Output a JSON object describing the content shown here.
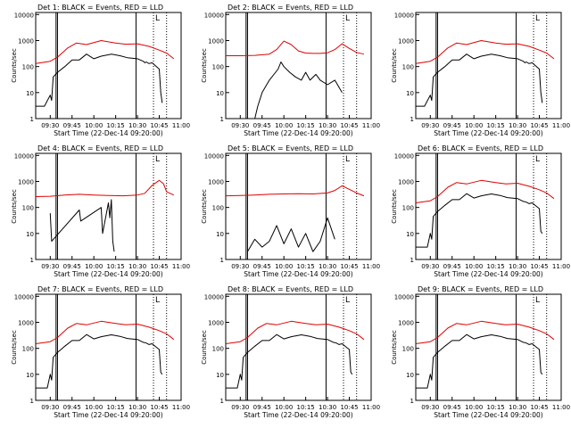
{
  "figure": {
    "xlabel": "Start Time (22-Dec-14 09:20:00)",
    "ylabel": "Counts/sec",
    "colors": {
      "events": "#000000",
      "lld": "#e00000",
      "axis": "#000000",
      "background": "#ffffff"
    }
  },
  "chart_data": [
    {
      "type": "line",
      "title": "Det 1: BLACK = Events, RED = LLD",
      "x_ticks": [
        "09:30",
        "09:45",
        "10:00",
        "10:15",
        "10:30",
        "10:45",
        "11:00"
      ],
      "y_ticks": [
        "1",
        "10",
        "100",
        "1000",
        "10000"
      ],
      "ylim": [
        1,
        12000
      ],
      "log_y": true,
      "xlim_minutes_from_start": [
        0,
        100
      ],
      "series": [
        {
          "name": "LLD",
          "color": "#e00000",
          "x": [
            0,
            10,
            15,
            22,
            28,
            35,
            45,
            55,
            62,
            70,
            78,
            85,
            90,
            95
          ],
          "y": [
            130,
            160,
            230,
            520,
            800,
            700,
            1000,
            800,
            720,
            750,
            600,
            430,
            330,
            200
          ]
        },
        {
          "name": "Events",
          "color": "#000000",
          "x": [
            0,
            6,
            10,
            11,
            12,
            15,
            20,
            25,
            30,
            35,
            40,
            45,
            52,
            58,
            63,
            70,
            74,
            75,
            76,
            78,
            80,
            85,
            86,
            87
          ],
          "y": [
            3,
            3,
            8,
            5,
            40,
            60,
            100,
            180,
            180,
            300,
            200,
            250,
            300,
            260,
            220,
            200,
            160,
            140,
            150,
            130,
            140,
            80,
            10,
            4
          ]
        }
      ],
      "annotations": {
        "solid_lines": [
          "09:34",
          "09:35",
          "10:29"
        ],
        "dotted_lines": [
          "10:41",
          "10:50"
        ],
        "markers": [
          "L"
        ]
      }
    },
    {
      "type": "line",
      "title": "Det 2: BLACK = Events, RED = LLD",
      "x_ticks": [
        "09:30",
        "09:45",
        "10:00",
        "10:15",
        "10:30",
        "10:45",
        "11:00"
      ],
      "y_ticks": [
        "1",
        "10",
        "100",
        "1000",
        "10000"
      ],
      "ylim": [
        1,
        12000
      ],
      "log_y": true,
      "xlim_minutes_from_start": [
        0,
        100
      ],
      "series": [
        {
          "name": "LLD",
          "color": "#e00000",
          "x": [
            0,
            10,
            20,
            30,
            35,
            40,
            45,
            50,
            55,
            60,
            65,
            70,
            75,
            80,
            85,
            90,
            95
          ],
          "y": [
            260,
            260,
            270,
            300,
            450,
            950,
            700,
            400,
            330,
            320,
            320,
            340,
            450,
            750,
            500,
            350,
            300
          ]
        },
        {
          "name": "Events",
          "color": "#000000",
          "x": [
            20,
            22,
            25,
            30,
            36,
            38,
            40,
            44,
            48,
            52,
            55,
            58,
            62,
            65,
            70,
            75,
            80
          ],
          "y": [
            1,
            3,
            10,
            30,
            80,
            150,
            100,
            60,
            40,
            30,
            60,
            30,
            50,
            30,
            20,
            30,
            10
          ]
        }
      ],
      "annotations": {
        "solid_lines": [
          "09:34",
          "09:35",
          "10:29"
        ],
        "dotted_lines": [
          "10:41",
          "10:50"
        ],
        "markers": [
          "L"
        ]
      }
    },
    {
      "type": "line",
      "title": "",
      "x_ticks": [
        "09:30",
        "09:45",
        "10:00",
        "10:15",
        "10:30",
        "10:45",
        "11:00"
      ],
      "y_ticks": [
        "1",
        "10",
        "100",
        "1000",
        "10000"
      ],
      "ylim": [
        1,
        12000
      ],
      "log_y": true,
      "xlim_minutes_from_start": [
        0,
        100
      ],
      "series": [
        {
          "name": "LLD",
          "color": "#e00000",
          "x": [
            0,
            10,
            15,
            22,
            28,
            35,
            45,
            55,
            62,
            70,
            78,
            85,
            90,
            95
          ],
          "y": [
            130,
            160,
            230,
            520,
            800,
            700,
            1000,
            800,
            720,
            750,
            600,
            430,
            330,
            200
          ]
        },
        {
          "name": "Events",
          "color": "#000000",
          "x": [
            0,
            6,
            10,
            11,
            12,
            15,
            20,
            25,
            30,
            35,
            40,
            45,
            52,
            58,
            63,
            70,
            74,
            75,
            76,
            78,
            80,
            85,
            86,
            87
          ],
          "y": [
            3,
            3,
            8,
            5,
            40,
            60,
            100,
            180,
            180,
            300,
            200,
            250,
            300,
            260,
            220,
            200,
            160,
            140,
            150,
            130,
            140,
            80,
            10,
            4
          ]
        }
      ],
      "annotations": {
        "solid_lines": [
          "09:34",
          "09:35",
          "10:29"
        ],
        "dotted_lines": [
          "10:41",
          "10:50"
        ],
        "markers": [
          "L"
        ]
      }
    },
    {
      "type": "line",
      "title": "Det 4: BLACK = Events, RED = LLD",
      "x_ticks": [
        "09:30",
        "09:45",
        "10:00",
        "10:15",
        "10:30",
        "10:45",
        "11:00"
      ],
      "y_ticks": [
        "1",
        "10",
        "100",
        "1000",
        "10000"
      ],
      "ylim": [
        1,
        12000
      ],
      "log_y": true,
      "xlim_minutes_from_start": [
        0,
        100
      ],
      "series": [
        {
          "name": "LLD",
          "color": "#e00000",
          "x": [
            0,
            10,
            20,
            30,
            40,
            50,
            60,
            70,
            75,
            80,
            85,
            88,
            90,
            95
          ],
          "y": [
            260,
            270,
            300,
            320,
            300,
            290,
            280,
            300,
            350,
            700,
            1100,
            800,
            400,
            300
          ]
        },
        {
          "name": "Events",
          "color": "#000000",
          "x": [
            10,
            11,
            30,
            31,
            45,
            46,
            50,
            51,
            52,
            53,
            54
          ],
          "y": [
            60,
            5,
            80,
            30,
            100,
            10,
            150,
            40,
            200,
            5,
            2
          ]
        }
      ],
      "annotations": {
        "solid_lines": [
          "09:34",
          "09:35",
          "10:29"
        ],
        "dotted_lines": [
          "10:41",
          "10:50"
        ],
        "markers": [
          "L"
        ]
      }
    },
    {
      "type": "line",
      "title": "Det 5: BLACK = Events, RED = LLD",
      "x_ticks": [
        "09:30",
        "09:45",
        "10:00",
        "10:15",
        "10:30",
        "10:45",
        "11:00"
      ],
      "y_ticks": [
        "1",
        "10",
        "100",
        "1000",
        "10000"
      ],
      "ylim": [
        1,
        12000
      ],
      "log_y": true,
      "xlim_minutes_from_start": [
        0,
        100
      ],
      "series": [
        {
          "name": "LLD",
          "color": "#e00000",
          "x": [
            0,
            10,
            20,
            30,
            40,
            50,
            60,
            70,
            75,
            80,
            85,
            90,
            95
          ],
          "y": [
            280,
            290,
            300,
            320,
            330,
            340,
            330,
            360,
            450,
            680,
            500,
            360,
            280
          ]
        },
        {
          "name": "Events",
          "color": "#000000",
          "x": [
            15,
            20,
            25,
            30,
            35,
            40,
            45,
            50,
            55,
            60,
            65,
            70,
            75
          ],
          "y": [
            2,
            6,
            3,
            5,
            20,
            4,
            15,
            3,
            10,
            2,
            5,
            40,
            6
          ]
        }
      ],
      "annotations": {
        "solid_lines": [
          "09:34",
          "09:35",
          "10:29"
        ],
        "dotted_lines": [
          "10:41",
          "10:50"
        ],
        "markers": [
          "L"
        ]
      }
    },
    {
      "type": "line",
      "title": "Det 6: BLACK = Events, RED = LLD",
      "x_ticks": [
        "09:30",
        "09:45",
        "10:00",
        "10:15",
        "10:30",
        "10:45",
        "11:00"
      ],
      "y_ticks": [
        "1",
        "10",
        "100",
        "1000",
        "10000"
      ],
      "ylim": [
        1,
        12000
      ],
      "log_y": true,
      "xlim_minutes_from_start": [
        0,
        100
      ],
      "series": [
        {
          "name": "LLD",
          "color": "#e00000",
          "x": [
            0,
            10,
            15,
            22,
            28,
            35,
            45,
            55,
            62,
            70,
            78,
            85,
            90,
            95
          ],
          "y": [
            150,
            180,
            260,
            600,
            900,
            800,
            1100,
            900,
            800,
            850,
            650,
            480,
            360,
            220
          ]
        },
        {
          "name": "Events",
          "color": "#000000",
          "x": [
            0,
            8,
            10,
            11,
            12,
            15,
            20,
            25,
            30,
            35,
            40,
            45,
            52,
            58,
            63,
            70,
            74,
            76,
            78,
            80,
            85,
            86,
            87
          ],
          "y": [
            3,
            3,
            10,
            6,
            45,
            70,
            120,
            200,
            200,
            340,
            230,
            280,
            330,
            290,
            240,
            220,
            170,
            160,
            140,
            150,
            90,
            12,
            10
          ]
        }
      ],
      "annotations": {
        "solid_lines": [
          "09:34",
          "09:35",
          "10:29"
        ],
        "dotted_lines": [
          "10:41",
          "10:50"
        ],
        "markers": [
          "L"
        ]
      }
    },
    {
      "type": "line",
      "title": "Det 7: BLACK = Events, RED = LLD",
      "x_ticks": [
        "09:30",
        "09:45",
        "10:00",
        "10:15",
        "10:30",
        "10:45",
        "11:00"
      ],
      "y_ticks": [
        "1",
        "10",
        "100",
        "1000",
        "10000"
      ],
      "ylim": [
        1,
        12000
      ],
      "log_y": true,
      "xlim_minutes_from_start": [
        0,
        100
      ],
      "series": [
        {
          "name": "LLD",
          "color": "#e00000",
          "x": [
            0,
            10,
            15,
            22,
            28,
            35,
            45,
            55,
            62,
            70,
            78,
            85,
            90,
            95
          ],
          "y": [
            150,
            180,
            260,
            600,
            900,
            800,
            1100,
            900,
            800,
            850,
            650,
            480,
            360,
            220
          ]
        },
        {
          "name": "Events",
          "color": "#000000",
          "x": [
            0,
            8,
            10,
            11,
            12,
            15,
            20,
            25,
            30,
            35,
            40,
            45,
            52,
            58,
            63,
            70,
            74,
            76,
            78,
            80,
            85,
            86,
            87
          ],
          "y": [
            3,
            3,
            10,
            6,
            45,
            70,
            120,
            200,
            200,
            340,
            230,
            280,
            330,
            290,
            240,
            220,
            170,
            160,
            140,
            150,
            90,
            12,
            10
          ]
        }
      ],
      "annotations": {
        "solid_lines": [
          "09:34",
          "09:35",
          "10:29"
        ],
        "dotted_lines": [
          "10:41",
          "10:50"
        ],
        "markers": [
          "L"
        ]
      }
    },
    {
      "type": "line",
      "title": "Det 8: BLACK = Events, RED = LLD",
      "x_ticks": [
        "09:30",
        "09:45",
        "10:00",
        "10:15",
        "10:30",
        "10:45",
        "11:00"
      ],
      "y_ticks": [
        "1",
        "10",
        "100",
        "1000",
        "10000"
      ],
      "ylim": [
        1,
        12000
      ],
      "log_y": true,
      "xlim_minutes_from_start": [
        0,
        100
      ],
      "series": [
        {
          "name": "LLD",
          "color": "#e00000",
          "x": [
            0,
            10,
            15,
            22,
            28,
            35,
            45,
            55,
            62,
            70,
            78,
            85,
            90,
            95
          ],
          "y": [
            150,
            180,
            260,
            600,
            900,
            800,
            1100,
            900,
            800,
            850,
            650,
            480,
            360,
            220
          ]
        },
        {
          "name": "Events",
          "color": "#000000",
          "x": [
            0,
            8,
            10,
            11,
            12,
            15,
            20,
            25,
            30,
            35,
            40,
            45,
            52,
            58,
            63,
            70,
            74,
            76,
            78,
            80,
            85,
            86,
            87
          ],
          "y": [
            3,
            3,
            10,
            6,
            45,
            70,
            120,
            200,
            200,
            340,
            230,
            280,
            330,
            290,
            240,
            220,
            170,
            160,
            140,
            150,
            90,
            12,
            10
          ]
        }
      ],
      "annotations": {
        "solid_lines": [
          "09:34",
          "09:35",
          "10:29"
        ],
        "dotted_lines": [
          "10:41",
          "10:50"
        ],
        "markers": [
          "L"
        ]
      }
    },
    {
      "type": "line",
      "title": "Det 9: BLACK = Events, RED = LLD",
      "x_ticks": [
        "09:30",
        "09:45",
        "10:00",
        "10:15",
        "10:30",
        "10:45",
        "11:00"
      ],
      "y_ticks": [
        "1",
        "10",
        "100",
        "1000",
        "10000"
      ],
      "ylim": [
        1,
        12000
      ],
      "log_y": true,
      "xlim_minutes_from_start": [
        0,
        100
      ],
      "series": [
        {
          "name": "LLD",
          "color": "#e00000",
          "x": [
            0,
            10,
            15,
            22,
            28,
            35,
            45,
            55,
            62,
            70,
            78,
            85,
            90,
            95
          ],
          "y": [
            150,
            180,
            260,
            600,
            900,
            800,
            1100,
            900,
            800,
            850,
            650,
            480,
            360,
            220
          ]
        },
        {
          "name": "Events",
          "color": "#000000",
          "x": [
            0,
            8,
            10,
            11,
            12,
            15,
            20,
            25,
            30,
            35,
            40,
            45,
            52,
            58,
            63,
            70,
            74,
            76,
            78,
            80,
            85,
            86,
            87
          ],
          "y": [
            3,
            3,
            10,
            6,
            45,
            70,
            120,
            200,
            200,
            340,
            230,
            280,
            330,
            290,
            240,
            220,
            170,
            160,
            140,
            150,
            90,
            12,
            10
          ]
        }
      ],
      "annotations": {
        "solid_lines": [
          "09:34",
          "09:35",
          "10:29"
        ],
        "dotted_lines": [
          "10:41",
          "10:50"
        ],
        "markers": [
          "L"
        ]
      }
    }
  ]
}
